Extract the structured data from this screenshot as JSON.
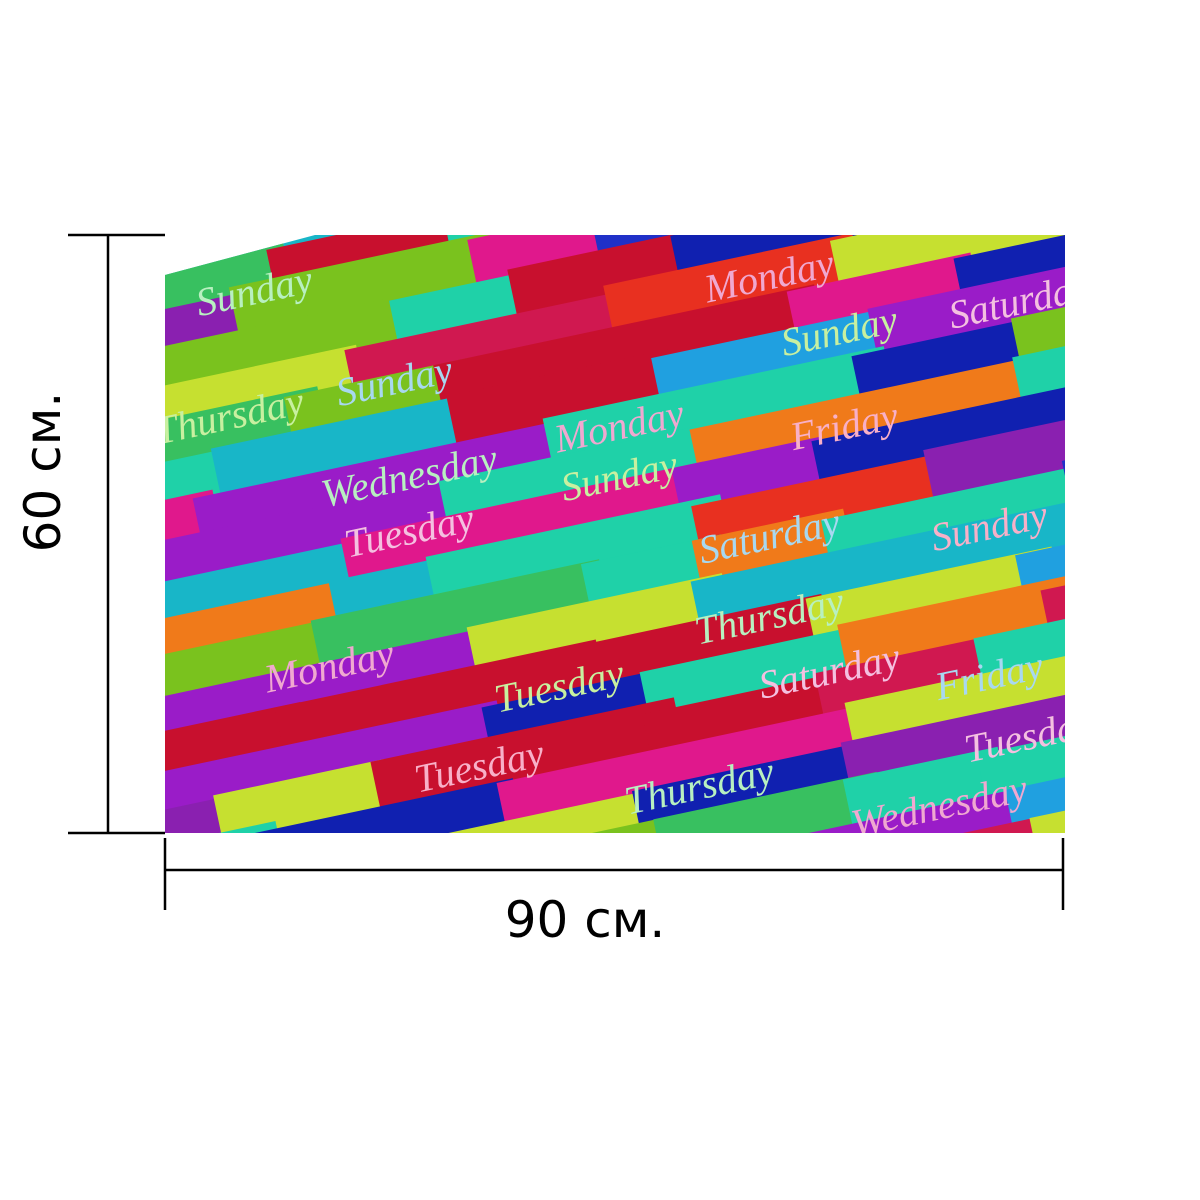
{
  "dimensions": {
    "height": "60 см.",
    "width": "90 см."
  },
  "pattern_labels": [
    "Sunday",
    "Monday",
    "Sunday",
    "Saturday",
    "Sunday",
    "Friday",
    "Wednesday",
    "Monday",
    "Sunday",
    "Tuesday",
    "Saturday",
    "Sunday",
    "Thursday",
    "Monday",
    "Tuesday",
    "Saturday",
    "Friday",
    "Tuesday",
    "Thursday",
    "Wednesday",
    "Thursday",
    "Tuesday"
  ]
}
